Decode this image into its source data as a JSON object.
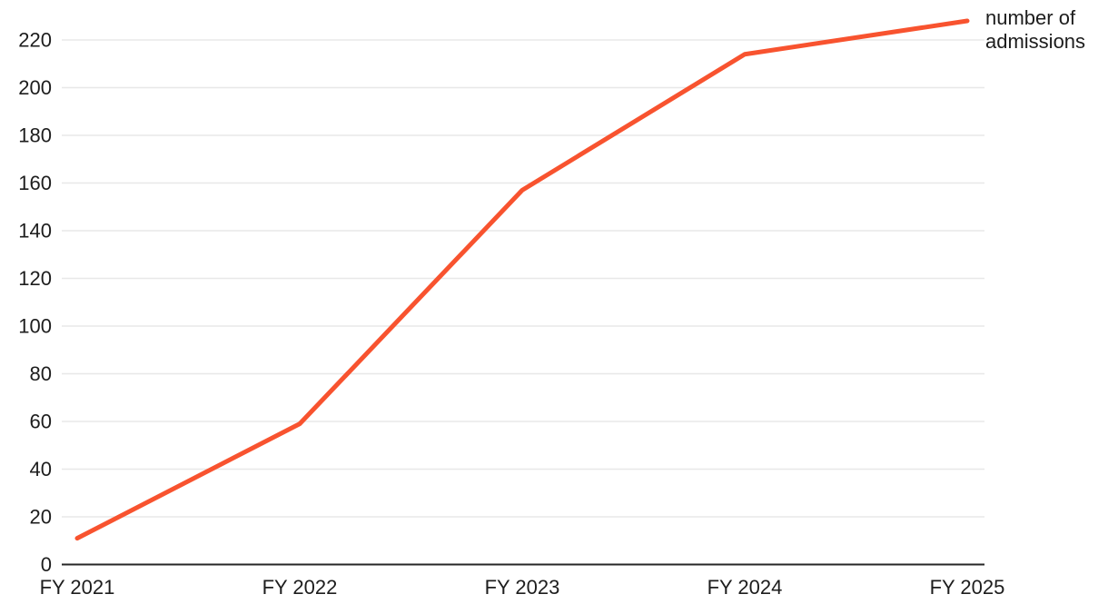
{
  "chart_data": {
    "type": "line",
    "categories": [
      "FY 2021",
      "FY 2022",
      "FY 2023",
      "FY 2024",
      "FY 2025"
    ],
    "series": [
      {
        "name": "number of admissions",
        "values": [
          11,
          59,
          157,
          214,
          228
        ]
      }
    ],
    "title": "",
    "xlabel": "",
    "ylabel": "",
    "ylim": [
      0,
      230
    ],
    "yticks": [
      0,
      20,
      40,
      60,
      80,
      100,
      120,
      140,
      160,
      180,
      200,
      220
    ],
    "grid": true,
    "legend_position": "right-of-line-end",
    "colors": {
      "line": "#f8532f",
      "axis": "#262626",
      "gridline": "#e8e8e8",
      "label": "#1d1d1d"
    }
  }
}
